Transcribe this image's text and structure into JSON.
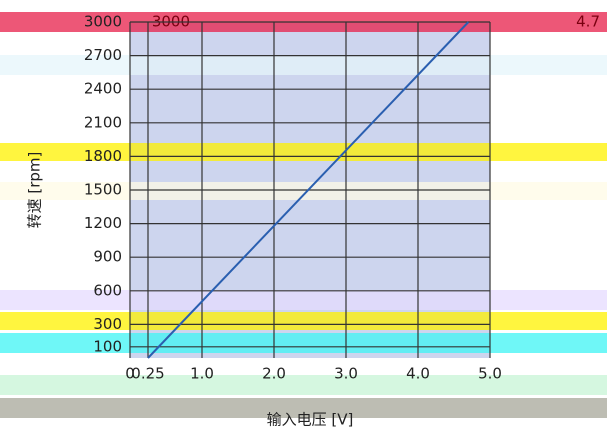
{
  "chart_data": {
    "type": "line",
    "ylabel": "转速 [rpm]",
    "xlabel": "输入电压 [V]",
    "x": [
      0.25,
      4.7
    ],
    "series": [
      {
        "name": "转速",
        "color": "#2a5fb0",
        "values": [
          0,
          3000
        ]
      }
    ],
    "xlim": [
      0,
      5
    ],
    "ylim": [
      0,
      3000
    ],
    "xticks": [
      0,
      0.25,
      {
        "value": 1,
        "label": "1.0"
      },
      {
        "value": 2,
        "label": "2.0"
      },
      {
        "value": 3,
        "label": "3.0"
      },
      {
        "value": 4,
        "label": "4.0"
      },
      {
        "value": 5,
        "label": "5.0"
      }
    ],
    "yticks": [
      100,
      300,
      600,
      900,
      1200,
      1500,
      1800,
      2100,
      2400,
      2700,
      3000
    ],
    "grid": true
  }
}
